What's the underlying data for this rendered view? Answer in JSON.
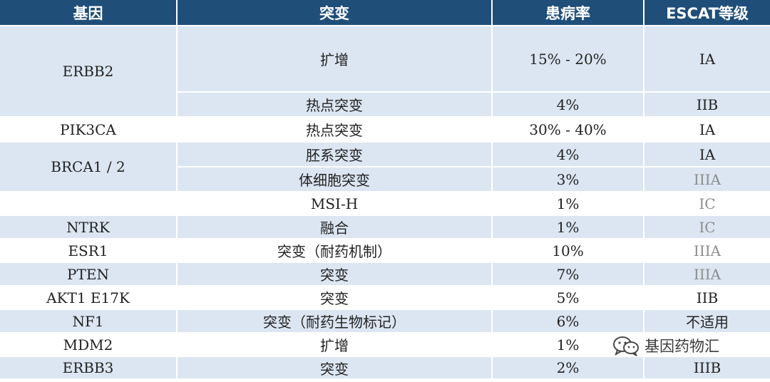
{
  "headers": [
    "基因",
    "突变",
    "患病率",
    "ESCAT等级"
  ],
  "rows": [
    {
      "gene": "ERBB2",
      "mutation": "扩增",
      "prevalence": "15% - 20%",
      "escat": "IA"
    },
    {
      "gene": "",
      "mutation": "热点突变",
      "prevalence": "4%",
      "escat": "IIB"
    },
    {
      "gene": "PIK3CA",
      "mutation": "热点突变",
      "prevalence": "30% - 40%",
      "escat": "IA"
    },
    {
      "gene": "BRCA1 / 2",
      "mutation": "胚系突变",
      "prevalence": "4%",
      "escat": "IA"
    },
    {
      "gene": "",
      "mutation": "体细胞突变",
      "prevalence": "3%",
      "escat": "IIIA"
    },
    {
      "gene": "",
      "mutation": "MSI-H",
      "prevalence": "1%",
      "escat": "IC"
    },
    {
      "gene": "NTRK",
      "mutation": "融合",
      "prevalence": "1%",
      "escat": "IC"
    },
    {
      "gene": "ESR1",
      "mutation": "突变（耐药机制）",
      "prevalence": "10%",
      "escat": "IIIA"
    },
    {
      "gene": "PTEN",
      "mutation": "突变",
      "prevalence": "7%",
      "escat": "IIIA"
    },
    {
      "gene": "AKT1  E17K",
      "mutation": "突变",
      "prevalence": "5%",
      "escat": "IIB"
    },
    {
      "gene": "NF1",
      "mutation": "突变（耐药生物标记）",
      "prevalence": "6%",
      "escat": "不适用"
    },
    {
      "gene": "MDM2",
      "mutation": "扩增",
      "prevalence": "1%",
      "escat": ""
    },
    {
      "gene": "ERBB3",
      "mutation": "突变",
      "prevalence": "2%",
      "escat": "IIIB"
    }
  ],
  "watermark": {
    "text": "基因药物汇",
    "icon": "wechat-icon"
  },
  "colors": {
    "header_bg": "#1f4e79",
    "row_shade": "#dce6f2",
    "gray_text": "#8c8c8c"
  }
}
